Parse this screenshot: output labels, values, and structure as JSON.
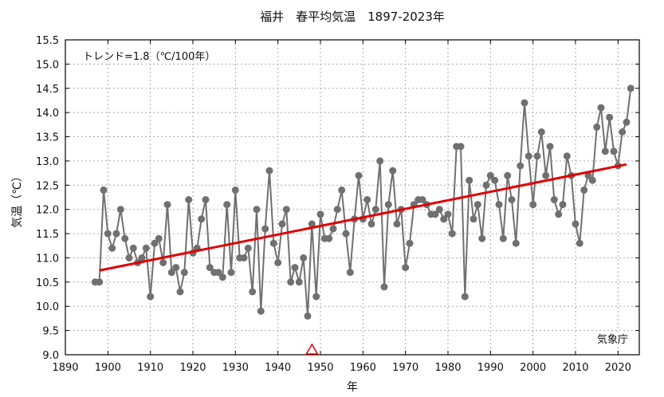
{
  "chart_data": {
    "type": "line",
    "title": "福井　春平均気温　1897-2023年",
    "xlabel": "年",
    "ylabel": "気温（℃）",
    "xlim": [
      1890,
      2025
    ],
    "ylim": [
      9.0,
      15.5
    ],
    "xticks": [
      1890,
      1900,
      1910,
      1920,
      1930,
      1940,
      1950,
      1960,
      1970,
      1980,
      1990,
      2000,
      2010,
      2020
    ],
    "yticks": [
      "9.0",
      "9.5",
      "10.0",
      "10.5",
      "11.0",
      "11.5",
      "12.0",
      "12.5",
      "13.0",
      "13.5",
      "14.0",
      "14.5",
      "15.0",
      "15.5"
    ],
    "grid": true,
    "trend_label": "トレンド=1.8（℃/100年）",
    "source_label": "気象庁",
    "series": [
      {
        "color": "#707070",
        "x": [
          1897,
          1898,
          1899,
          1900,
          1901,
          1902,
          1903,
          1904,
          1905,
          1906,
          1907,
          1908,
          1909,
          1910,
          1911,
          1912,
          1913,
          1914,
          1915,
          1916,
          1917,
          1918,
          1919,
          1920,
          1921,
          1922,
          1923,
          1924,
          1925,
          1926,
          1927,
          1928,
          1929,
          1930,
          1931,
          1932,
          1933,
          1934,
          1935,
          1936,
          1937,
          1938,
          1939,
          1940,
          1941,
          1942,
          1943,
          1944,
          1945,
          1946,
          1947,
          1948,
          1949,
          1950,
          1951,
          1952,
          1953,
          1954,
          1955,
          1956,
          1957,
          1958,
          1959,
          1960,
          1961,
          1962,
          1963,
          1964,
          1965,
          1966,
          1967,
          1968,
          1969,
          1970,
          1971,
          1972,
          1973,
          1974,
          1975,
          1976,
          1977,
          1978,
          1979,
          1980,
          1981,
          1982,
          1983,
          1984,
          1985,
          1986,
          1987,
          1988,
          1989,
          1990,
          1991,
          1992,
          1993,
          1994,
          1995,
          1996,
          1997,
          1998,
          1999,
          2000,
          2001,
          2002,
          2003,
          2004,
          2005,
          2006,
          2007,
          2008,
          2009,
          2010,
          2011,
          2012,
          2013,
          2014,
          2015,
          2016,
          2017,
          2018,
          2019,
          2020,
          2021,
          2022,
          2023
        ],
        "y": [
          10.5,
          10.5,
          12.4,
          11.5,
          11.2,
          11.5,
          12.0,
          11.4,
          11.0,
          11.2,
          10.9,
          11.0,
          11.2,
          10.2,
          11.3,
          11.4,
          10.9,
          12.1,
          10.7,
          10.8,
          10.3,
          10.7,
          12.2,
          11.1,
          11.2,
          11.8,
          12.2,
          10.8,
          10.7,
          10.7,
          10.6,
          12.1,
          10.7,
          12.4,
          11.0,
          11.0,
          11.2,
          10.3,
          12.0,
          9.9,
          11.6,
          12.8,
          11.3,
          10.9,
          11.7,
          12.0,
          10.5,
          10.8,
          10.5,
          11.0,
          9.8,
          11.7,
          10.2,
          11.9,
          11.4,
          11.4,
          11.6,
          12.0,
          12.4,
          11.5,
          10.7,
          11.8,
          12.7,
          11.8,
          12.2,
          11.7,
          12.0,
          13.0,
          10.4,
          12.1,
          12.8,
          11.7,
          12.0,
          10.8,
          11.3,
          12.1,
          12.2,
          12.2,
          12.1,
          11.9,
          11.9,
          12.0,
          11.8,
          11.9,
          11.5,
          13.3,
          13.3,
          10.2,
          12.6,
          11.8,
          12.1,
          11.4,
          12.5,
          12.7,
          12.6,
          12.1,
          11.4,
          12.7,
          12.2,
          11.3,
          12.9,
          14.2,
          13.1,
          12.1,
          13.1,
          13.6,
          12.7,
          13.3,
          12.2,
          11.9,
          12.1,
          13.1,
          12.7,
          11.7,
          11.3,
          12.4,
          12.7,
          12.6,
          13.7,
          14.1,
          13.2,
          13.9,
          13.2,
          12.9,
          13.6,
          13.8,
          14.5
        ]
      }
    ],
    "trend_line": {
      "color": "#e00000",
      "x": [
        1898,
        2022
      ],
      "y": [
        10.74,
        12.93
      ]
    },
    "marker": {
      "type": "triangle",
      "color": "#e00000",
      "x": 1948,
      "y": 9.0
    }
  }
}
